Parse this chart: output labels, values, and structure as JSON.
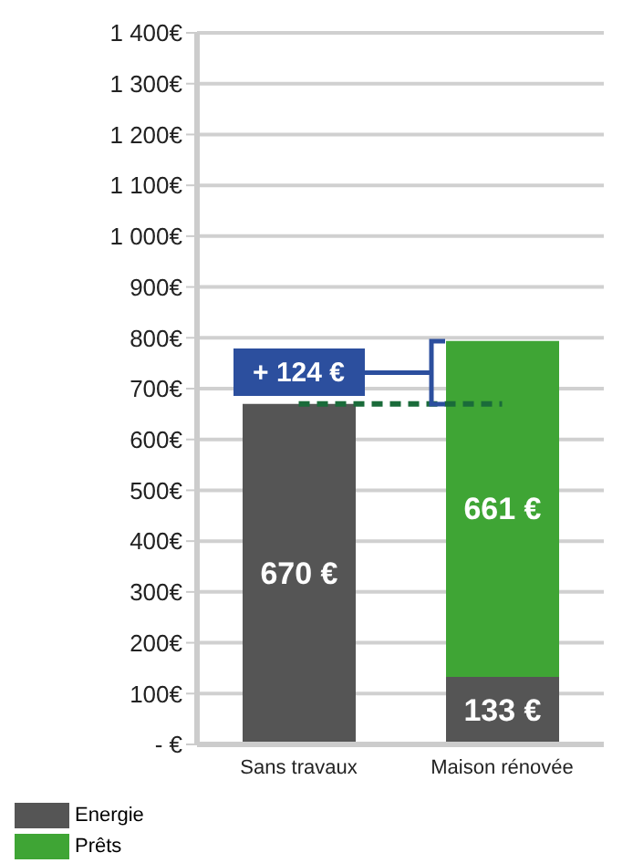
{
  "chart_data": {
    "type": "bar",
    "stacked": true,
    "categories": [
      "Sans travaux",
      "Maison rénovée"
    ],
    "series": [
      {
        "name": "Energie",
        "color": "#555555",
        "values": [
          670,
          133
        ],
        "value_labels": [
          "670 €",
          "133 €"
        ]
      },
      {
        "name": "Prêts",
        "color": "#3fa535",
        "values": [
          null,
          661
        ],
        "value_labels": [
          null,
          "661 €"
        ]
      }
    ],
    "ylim": [
      0,
      1400
    ],
    "yticks": [
      {
        "value": 0,
        "label": "- €"
      },
      {
        "value": 100,
        "label": "100€"
      },
      {
        "value": 200,
        "label": "200€"
      },
      {
        "value": 300,
        "label": "300€"
      },
      {
        "value": 400,
        "label": "400€"
      },
      {
        "value": 500,
        "label": "500€"
      },
      {
        "value": 600,
        "label": "600€"
      },
      {
        "value": 700,
        "label": "700€"
      },
      {
        "value": 800,
        "label": "800€"
      },
      {
        "value": 900,
        "label": "900€"
      },
      {
        "value": 1000,
        "label": "1 000€"
      },
      {
        "value": 1100,
        "label": "1 100€"
      },
      {
        "value": 1200,
        "label": "1 200€"
      },
      {
        "value": 1300,
        "label": "1 300€"
      },
      {
        "value": 1400,
        "label": "1 400€"
      }
    ],
    "grid": "y",
    "legend": "bottom left",
    "ref_lines": [
      {
        "axis": "y",
        "value": 670,
        "color": "#1a6b3a",
        "line_style": "dashed"
      }
    ],
    "annotations": [
      "+ 124 €"
    ]
  }
}
